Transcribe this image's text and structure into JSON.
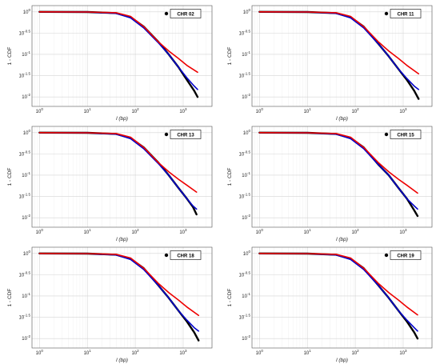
{
  "chart_data": [
    {
      "type": "line",
      "legend": {
        "label": "CHR 02",
        "placement": "top-right"
      },
      "xlabel": "l (bp)",
      "ylabel": "1 - CDF",
      "xscale": "log",
      "yscale": "log",
      "xlim": [
        0.7,
        4000
      ],
      "ylim": [
        0.006,
        1.4
      ],
      "x_ticks": [
        "10^0",
        "10^1",
        "10^2",
        "10^3"
      ],
      "y_ticks": [
        "10^0",
        "10^-0.5",
        "10^-1",
        "10^-1.5",
        "10^-2"
      ],
      "grid": true,
      "series": [
        {
          "color": "#000000",
          "points": [
            [
              1,
              1.0
            ],
            [
              10,
              0.99
            ],
            [
              40,
              0.93
            ],
            [
              80,
              0.75
            ],
            [
              150,
              0.45
            ],
            [
              300,
              0.2
            ],
            [
              500,
              0.1
            ],
            [
              800,
              0.05
            ],
            [
              1200,
              0.025
            ],
            [
              1700,
              0.014
            ],
            [
              2000,
              0.01
            ]
          ]
        },
        {
          "color": "#0000cc",
          "points": [
            [
              1,
              1.0
            ],
            [
              10,
              0.99
            ],
            [
              40,
              0.92
            ],
            [
              80,
              0.72
            ],
            [
              150,
              0.42
            ],
            [
              300,
              0.19
            ],
            [
              500,
              0.1
            ],
            [
              800,
              0.05
            ],
            [
              1200,
              0.028
            ],
            [
              1700,
              0.018
            ],
            [
              2000,
              0.015
            ]
          ]
        },
        {
          "color": "#ee0000",
          "points": [
            [
              1,
              1.0
            ],
            [
              10,
              0.99
            ],
            [
              40,
              0.95
            ],
            [
              80,
              0.78
            ],
            [
              150,
              0.45
            ],
            [
              300,
              0.2
            ],
            [
              500,
              0.12
            ],
            [
              800,
              0.08
            ],
            [
              1200,
              0.055
            ],
            [
              2000,
              0.038
            ]
          ]
        }
      ]
    },
    {
      "type": "line",
      "legend": {
        "label": "CHR 11",
        "placement": "top-right"
      },
      "xlabel": "l (bp)",
      "ylabel": "1 - CDF",
      "xscale": "log",
      "yscale": "log",
      "xlim": [
        0.7,
        4000
      ],
      "ylim": [
        0.006,
        1.4
      ],
      "x_ticks": [
        "10^0",
        "10^1",
        "10^2",
        "10^3"
      ],
      "y_ticks": [
        "10^0",
        "10^-0.5",
        "10^-1",
        "10^-1.5",
        "10^-2"
      ],
      "grid": true,
      "series": [
        {
          "color": "#000000",
          "points": [
            [
              1,
              1.0
            ],
            [
              10,
              0.99
            ],
            [
              40,
              0.93
            ],
            [
              80,
              0.75
            ],
            [
              150,
              0.45
            ],
            [
              300,
              0.18
            ],
            [
              500,
              0.09
            ],
            [
              800,
              0.045
            ],
            [
              1200,
              0.025
            ],
            [
              1700,
              0.014
            ],
            [
              2100,
              0.009
            ]
          ]
        },
        {
          "color": "#0000cc",
          "points": [
            [
              1,
              1.0
            ],
            [
              10,
              0.99
            ],
            [
              40,
              0.92
            ],
            [
              80,
              0.72
            ],
            [
              150,
              0.42
            ],
            [
              300,
              0.18
            ],
            [
              500,
              0.09
            ],
            [
              800,
              0.045
            ],
            [
              1200,
              0.027
            ],
            [
              1700,
              0.018
            ],
            [
              2100,
              0.015
            ]
          ]
        },
        {
          "color": "#ee0000",
          "points": [
            [
              1,
              1.0
            ],
            [
              10,
              0.99
            ],
            [
              40,
              0.95
            ],
            [
              80,
              0.78
            ],
            [
              150,
              0.45
            ],
            [
              300,
              0.2
            ],
            [
              500,
              0.12
            ],
            [
              800,
              0.08
            ],
            [
              1200,
              0.055
            ],
            [
              2100,
              0.035
            ]
          ]
        }
      ]
    },
    {
      "type": "line",
      "legend": {
        "label": "CHR 13",
        "placement": "top-right"
      },
      "xlabel": "l (bp)",
      "ylabel": "1 - CDF",
      "xscale": "log",
      "yscale": "log",
      "xlim": [
        0.7,
        4000
      ],
      "ylim": [
        0.006,
        1.4
      ],
      "x_ticks": [
        "10^0",
        "10^1",
        "10^2",
        "10^3"
      ],
      "y_ticks": [
        "10^0",
        "10^-0.5",
        "10^-1",
        "10^-1.5",
        "10^-2"
      ],
      "grid": true,
      "series": [
        {
          "color": "#000000",
          "points": [
            [
              1,
              1.0
            ],
            [
              10,
              0.99
            ],
            [
              40,
              0.93
            ],
            [
              80,
              0.75
            ],
            [
              150,
              0.45
            ],
            [
              300,
              0.2
            ],
            [
              500,
              0.1
            ],
            [
              800,
              0.05
            ],
            [
              1200,
              0.028
            ],
            [
              1600,
              0.018
            ],
            [
              1900,
              0.012
            ]
          ]
        },
        {
          "color": "#0000cc",
          "points": [
            [
              1,
              1.0
            ],
            [
              10,
              0.99
            ],
            [
              40,
              0.92
            ],
            [
              80,
              0.72
            ],
            [
              150,
              0.42
            ],
            [
              300,
              0.19
            ],
            [
              500,
              0.1
            ],
            [
              800,
              0.05
            ],
            [
              1200,
              0.028
            ],
            [
              1600,
              0.019
            ],
            [
              1900,
              0.016
            ]
          ]
        },
        {
          "color": "#ee0000",
          "points": [
            [
              1,
              1.0
            ],
            [
              10,
              0.99
            ],
            [
              40,
              0.95
            ],
            [
              80,
              0.78
            ],
            [
              150,
              0.45
            ],
            [
              300,
              0.2
            ],
            [
              500,
              0.12
            ],
            [
              800,
              0.08
            ],
            [
              1200,
              0.058
            ],
            [
              1900,
              0.04
            ]
          ]
        }
      ]
    },
    {
      "type": "line",
      "legend": {
        "label": "CHR 15",
        "placement": "top-right"
      },
      "xlabel": "l (bp)",
      "ylabel": "1 - CDF",
      "xscale": "log",
      "yscale": "log",
      "xlim": [
        0.7,
        4000
      ],
      "ylim": [
        0.006,
        1.4
      ],
      "x_ticks": [
        "10^0",
        "10^1",
        "10^2",
        "10^3"
      ],
      "y_ticks": [
        "10^0",
        "10^-0.5",
        "10^-1",
        "10^-1.5",
        "10^-2"
      ],
      "grid": true,
      "series": [
        {
          "color": "#000000",
          "points": [
            [
              1,
              1.0
            ],
            [
              10,
              0.99
            ],
            [
              40,
              0.93
            ],
            [
              80,
              0.75
            ],
            [
              150,
              0.45
            ],
            [
              300,
              0.18
            ],
            [
              500,
              0.1
            ],
            [
              800,
              0.05
            ],
            [
              1200,
              0.028
            ],
            [
              1700,
              0.015
            ],
            [
              2000,
              0.011
            ]
          ]
        },
        {
          "color": "#0000cc",
          "points": [
            [
              1,
              1.0
            ],
            [
              10,
              0.99
            ],
            [
              40,
              0.92
            ],
            [
              80,
              0.72
            ],
            [
              150,
              0.42
            ],
            [
              300,
              0.18
            ],
            [
              500,
              0.1
            ],
            [
              800,
              0.05
            ],
            [
              1200,
              0.028
            ],
            [
              1700,
              0.019
            ],
            [
              2000,
              0.016
            ]
          ]
        },
        {
          "color": "#ee0000",
          "points": [
            [
              1,
              1.0
            ],
            [
              10,
              0.99
            ],
            [
              40,
              0.95
            ],
            [
              80,
              0.78
            ],
            [
              150,
              0.45
            ],
            [
              300,
              0.2
            ],
            [
              500,
              0.12
            ],
            [
              800,
              0.08
            ],
            [
              1200,
              0.058
            ],
            [
              2000,
              0.038
            ]
          ]
        }
      ]
    },
    {
      "type": "line",
      "legend": {
        "label": "CHR 18",
        "placement": "top-right"
      },
      "xlabel": "l (bp)",
      "ylabel": "1 - CDF",
      "xscale": "log",
      "yscale": "log",
      "xlim": [
        0.7,
        4000
      ],
      "ylim": [
        0.006,
        1.4
      ],
      "x_ticks": [
        "10^0",
        "10^1",
        "10^2",
        "10^3"
      ],
      "y_ticks": [
        "10^0",
        "10^-0.5",
        "10^-1",
        "10^-1.5",
        "10^-2"
      ],
      "grid": true,
      "series": [
        {
          "color": "#000000",
          "points": [
            [
              1,
              1.0
            ],
            [
              10,
              0.99
            ],
            [
              40,
              0.93
            ],
            [
              80,
              0.75
            ],
            [
              150,
              0.45
            ],
            [
              300,
              0.18
            ],
            [
              500,
              0.09
            ],
            [
              800,
              0.045
            ],
            [
              1200,
              0.025
            ],
            [
              1700,
              0.014
            ],
            [
              2100,
              0.009
            ]
          ]
        },
        {
          "color": "#0000cc",
          "points": [
            [
              1,
              1.0
            ],
            [
              10,
              0.99
            ],
            [
              40,
              0.92
            ],
            [
              80,
              0.72
            ],
            [
              150,
              0.42
            ],
            [
              300,
              0.18
            ],
            [
              500,
              0.09
            ],
            [
              800,
              0.045
            ],
            [
              1200,
              0.027
            ],
            [
              1700,
              0.018
            ],
            [
              2100,
              0.015
            ]
          ]
        },
        {
          "color": "#ee0000",
          "points": [
            [
              1,
              1.0
            ],
            [
              10,
              0.99
            ],
            [
              40,
              0.95
            ],
            [
              80,
              0.78
            ],
            [
              150,
              0.45
            ],
            [
              300,
              0.2
            ],
            [
              500,
              0.12
            ],
            [
              800,
              0.08
            ],
            [
              1200,
              0.055
            ],
            [
              2100,
              0.035
            ]
          ]
        }
      ]
    },
    {
      "type": "line",
      "legend": {
        "label": "CHR 19",
        "placement": "top-right"
      },
      "xlabel": "l (bp)",
      "ylabel": "1 - CDF",
      "xscale": "log",
      "yscale": "log",
      "xlim": [
        0.7,
        4000
      ],
      "ylim": [
        0.006,
        1.4
      ],
      "x_ticks": [
        "10^0",
        "10^1",
        "10^2",
        "10^3"
      ],
      "y_ticks": [
        "10^0",
        "10^-0.5",
        "10^-1",
        "10^-1.5",
        "10^-2"
      ],
      "grid": true,
      "series": [
        {
          "color": "#000000",
          "points": [
            [
              1,
              1.0
            ],
            [
              10,
              0.99
            ],
            [
              40,
              0.93
            ],
            [
              80,
              0.75
            ],
            [
              150,
              0.45
            ],
            [
              300,
              0.18
            ],
            [
              500,
              0.09
            ],
            [
              800,
              0.045
            ],
            [
              1200,
              0.025
            ],
            [
              1700,
              0.014
            ],
            [
              2000,
              0.01
            ]
          ]
        },
        {
          "color": "#0000cc",
          "points": [
            [
              1,
              1.0
            ],
            [
              10,
              0.99
            ],
            [
              40,
              0.92
            ],
            [
              80,
              0.72
            ],
            [
              150,
              0.42
            ],
            [
              300,
              0.18
            ],
            [
              500,
              0.09
            ],
            [
              800,
              0.045
            ],
            [
              1200,
              0.027
            ],
            [
              1700,
              0.018
            ],
            [
              2000,
              0.015
            ]
          ]
        },
        {
          "color": "#ee0000",
          "points": [
            [
              1,
              1.0
            ],
            [
              10,
              0.99
            ],
            [
              40,
              0.95
            ],
            [
              80,
              0.78
            ],
            [
              150,
              0.45
            ],
            [
              300,
              0.2
            ],
            [
              500,
              0.12
            ],
            [
              800,
              0.08
            ],
            [
              1200,
              0.055
            ],
            [
              2000,
              0.036
            ]
          ]
        }
      ]
    }
  ]
}
